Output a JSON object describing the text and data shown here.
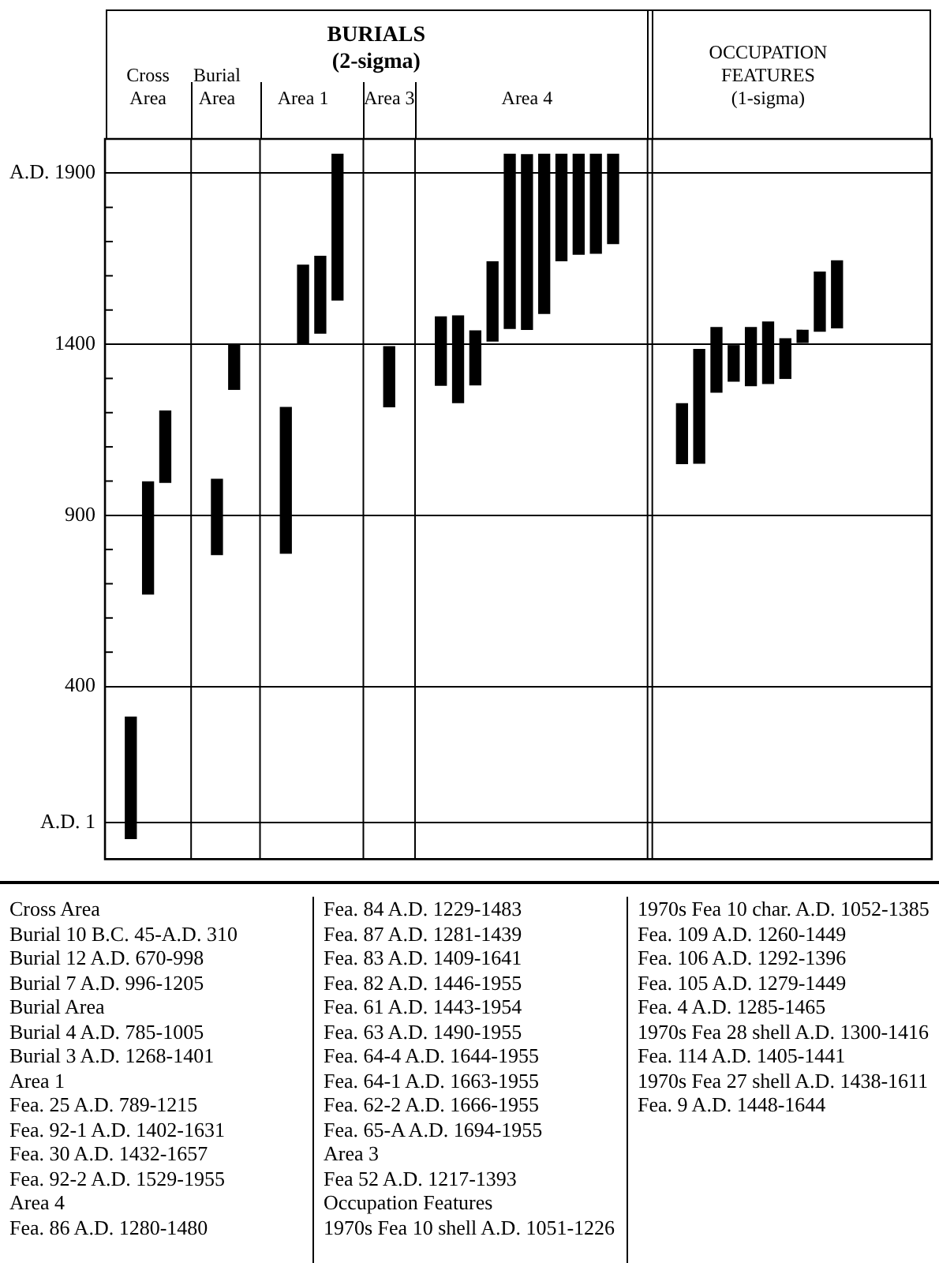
{
  "chart_data": {
    "type": "bar",
    "title": "BURIALS (2-sigma)",
    "categories": [
      null,
      null,
      "Cross Area",
      null,
      null,
      null,
      "Burial Area",
      null,
      null,
      null,
      null,
      "Area 1",
      null,
      null,
      null,
      null,
      "Area 3",
      null,
      null,
      null,
      null,
      null,
      null,
      null,
      "Area 4",
      null,
      null,
      null,
      null,
      null,
      null,
      null,
      null,
      null,
      null,
      null,
      null,
      null,
      "OCCUPATION FEATURES (1-sigma)",
      null,
      null,
      null,
      null,
      null,
      null,
      null,
      null,
      null
    ],
    "color": "#000000",
    "base": [
      null,
      -45,
      670,
      996,
      null,
      null,
      785,
      1268,
      null,
      null,
      789,
      1402,
      1432,
      1529,
      null,
      null,
      1217,
      null,
      null,
      1280,
      1229,
      1281,
      1409,
      1446,
      1443,
      1490,
      1644,
      1663,
      1666,
      1694,
      null,
      null,
      null,
      1051,
      1052,
      1260,
      1292,
      1279,
      1285,
      1300,
      1405,
      1438,
      1448,
      null,
      null,
      null,
      null,
      null
    ],
    "values": [
      null,
      355,
      328,
      209,
      null,
      null,
      220,
      133,
      null,
      null,
      426,
      229,
      225,
      426,
      null,
      null,
      176,
      null,
      null,
      200,
      254,
      158,
      232,
      509,
      511,
      465,
      311,
      292,
      289,
      261,
      null,
      null,
      null,
      175,
      333,
      189,
      104,
      170,
      180,
      116,
      36,
      173,
      196,
      null,
      null,
      null,
      null,
      null
    ],
    "ylim": [
      -105,
      2000
    ],
    "yticks": [
      {
        "value": 1,
        "label": "A.D. 1"
      },
      400,
      {
        "value": 500,
        "label": null
      },
      {
        "value": 600,
        "label": null
      },
      {
        "value": 700,
        "label": null
      },
      {
        "value": 800,
        "label": null
      },
      900,
      {
        "value": 1000,
        "label": null
      },
      {
        "value": 1100,
        "label": null
      },
      {
        "value": 1200,
        "label": null
      },
      {
        "value": 1300,
        "label": null
      },
      1400,
      {
        "value": 1500,
        "label": null
      },
      {
        "value": 1600,
        "label": null
      },
      {
        "value": 1700,
        "label": null
      },
      {
        "value": 1800,
        "label": null
      },
      {
        "value": 1900,
        "label": "A.D. 1900"
      }
    ],
    "grid": true,
    "legend": false,
    "annotations": [
      "Cross Area",
      "Burial 10 B.C. 45-A.D. 310",
      "Burial 12 A.D. 670-998",
      "Burial 7 A.D. 996-1205",
      "Burial Area",
      "Burial 4 A.D. 785-1005",
      "Burial 3 A.D. 1268-1401",
      "Area 1",
      "Fea. 25 A.D. 789-1215",
      "Fea. 92-1 A.D. 1402-1631",
      "Fea. 30 A.D. 1432-1657",
      "Fea. 92-2 A.D. 1529-1955",
      "Area 4",
      "Fea. 86 A.D. 1280-1480",
      "Fea. 84 A.D. 1229-1483",
      "Fea. 87 A.D. 1281-1439",
      "Fea. 83 A.D. 1409-1641",
      "Fea. 82 A.D. 1446-1955",
      "Fea. 61 A.D. 1443-1954",
      "Fea. 63 A.D. 1490-1955",
      "Fea. 64-4 A.D. 1644-1955",
      "Fea. 64-1 A.D. 1663-1955",
      "Fea. 62-2 A.D. 1666-1955",
      "Fea. 65-A A.D. 1694-1955",
      "Area 3",
      "Fea 52 A.D. 1217-1393",
      "Occupation Features",
      "1970s Fea 10 shell A.D. 1051-1226",
      "1970s Fea 10 char. A.D. 1052-1385",
      "Fea. 109 A.D. 1260-1449",
      "Fea. 106 A.D. 1292-1396",
      "Fea. 105 A.D. 1279-1449",
      "Fea. 4 A.D. 1285-1465",
      "1970s Fea 28 shell A.D. 1300-1416",
      "Fea. 114 A.D. 1405-1441",
      "1970s Fea 27 shell A.D. 1438-1611",
      "Fea. 9 A.D. 1448-1644"
    ]
  }
}
